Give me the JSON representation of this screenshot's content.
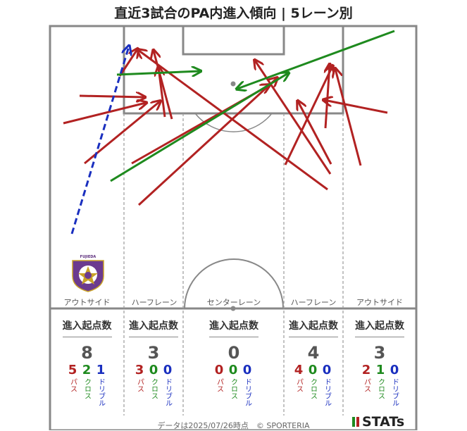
{
  "title": "直近3試合のPA内進入傾向 | 5レーン別",
  "lanes": [
    {
      "label": "アウトサイド",
      "header": "進入起点数",
      "total": "8",
      "pass": "5",
      "cross": "2",
      "dribble": "1"
    },
    {
      "label": "ハーフレーン",
      "header": "進入起点数",
      "total": "3",
      "pass": "3",
      "cross": "0",
      "dribble": "0"
    },
    {
      "label": "センターレーン",
      "header": "進入起点数",
      "total": "0",
      "pass": "0",
      "cross": "0",
      "dribble": "0"
    },
    {
      "label": "ハーフレーン",
      "header": "進入起点数",
      "total": "4",
      "pass": "4",
      "cross": "0",
      "dribble": "0"
    },
    {
      "label": "アウトサイド",
      "header": "進入起点数",
      "total": "3",
      "pass": "2",
      "cross": "1",
      "dribble": "0"
    }
  ],
  "legend": {
    "pass": "パス",
    "cross": "クロス",
    "dribble": "ドリブル"
  },
  "footer": "データは2025/07/26時点　© SPORTERIA",
  "logo": "STATs",
  "emblem_text": "FUJIEDA",
  "colors": {
    "pass": "#b22222",
    "cross": "#1e8a1e",
    "dribble": "#1a2fbf"
  }
}
